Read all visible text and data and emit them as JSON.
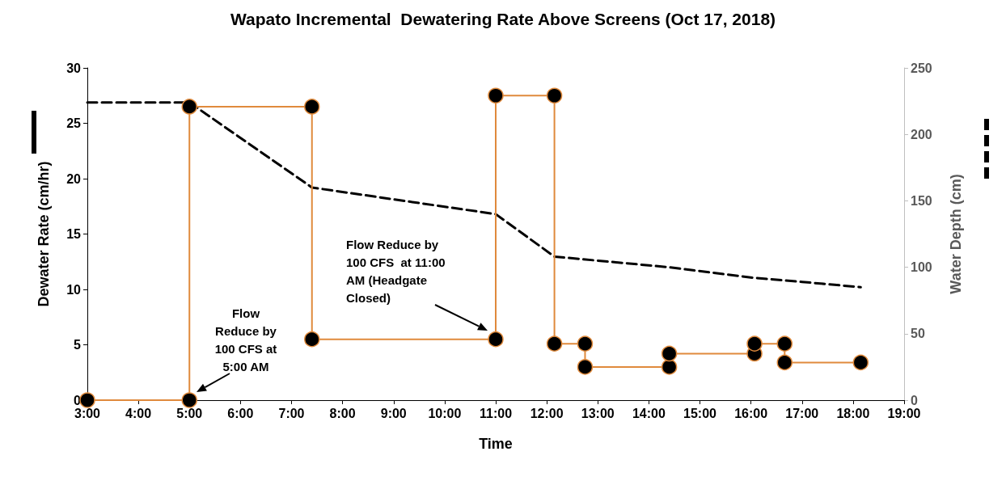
{
  "chart_data": {
    "type": "line",
    "title": "Wapato Incremental  Dewatering Rate Above Screens (Oct 17, 2018)",
    "xlabel": "Time",
    "ylabel": "Dewater Rate (cm/hr)",
    "y2label": "Water Depth (cm)",
    "xlim": [
      3,
      19
    ],
    "xticks": [
      {
        "value": 3,
        "label": "3:00"
      },
      {
        "value": 4,
        "label": "4:00"
      },
      {
        "value": 5,
        "label": "5:00"
      },
      {
        "value": 6,
        "label": "6:00"
      },
      {
        "value": 7,
        "label": "7:00"
      },
      {
        "value": 8,
        "label": "8:00"
      },
      {
        "value": 9,
        "label": "9:00"
      },
      {
        "value": 10,
        "label": "10:00"
      },
      {
        "value": 11,
        "label": "11:00"
      },
      {
        "value": 12,
        "label": "12:00"
      },
      {
        "value": 13,
        "label": "13:00"
      },
      {
        "value": 14,
        "label": "14:00"
      },
      {
        "value": 15,
        "label": "15:00"
      },
      {
        "value": 16,
        "label": "16:00"
      },
      {
        "value": 17,
        "label": "17:00"
      },
      {
        "value": 18,
        "label": "18:00"
      },
      {
        "value": 19,
        "label": "19:00"
      }
    ],
    "ylim": [
      0,
      30
    ],
    "yticks": [
      0,
      5,
      10,
      15,
      20,
      25,
      30
    ],
    "y2lim": [
      0,
      250
    ],
    "y2ticks": [
      0,
      50,
      100,
      150,
      200,
      250
    ],
    "grid": false,
    "series": [
      {
        "color": "#e08a3c",
        "marker": "circle",
        "line_style": "solid",
        "x": [
          3,
          5,
          5,
          7.4,
          7.4,
          11,
          11,
          12.15,
          12.15,
          12.75,
          12.75,
          14.4,
          14.4,
          16.07,
          16.07,
          16.66,
          16.66,
          18.15
        ],
        "values": [
          0,
          0,
          26.5,
          26.5,
          5.5,
          5.5,
          27.5,
          27.5,
          5.1,
          5.1,
          3,
          3,
          4.2,
          4.2,
          5.1,
          5.1,
          3.4,
          3.4
        ]
      },
      {
        "color": "#000000",
        "marker": "none",
        "line_style": "dashed",
        "axis": "y2",
        "x": [
          3,
          5,
          7.4,
          11,
          12.15,
          14.4,
          16.07,
          17,
          18.15
        ],
        "values": [
          224,
          224,
          160,
          140,
          108,
          100,
          92,
          89,
          85
        ]
      }
    ],
    "annotations": [
      "Flow\nReduce by\n100 CFS at\n5:00 AM",
      "Flow Reduce by\n100 CFS  at 11:00\nAM (Headgate\nClosed)"
    ]
  }
}
